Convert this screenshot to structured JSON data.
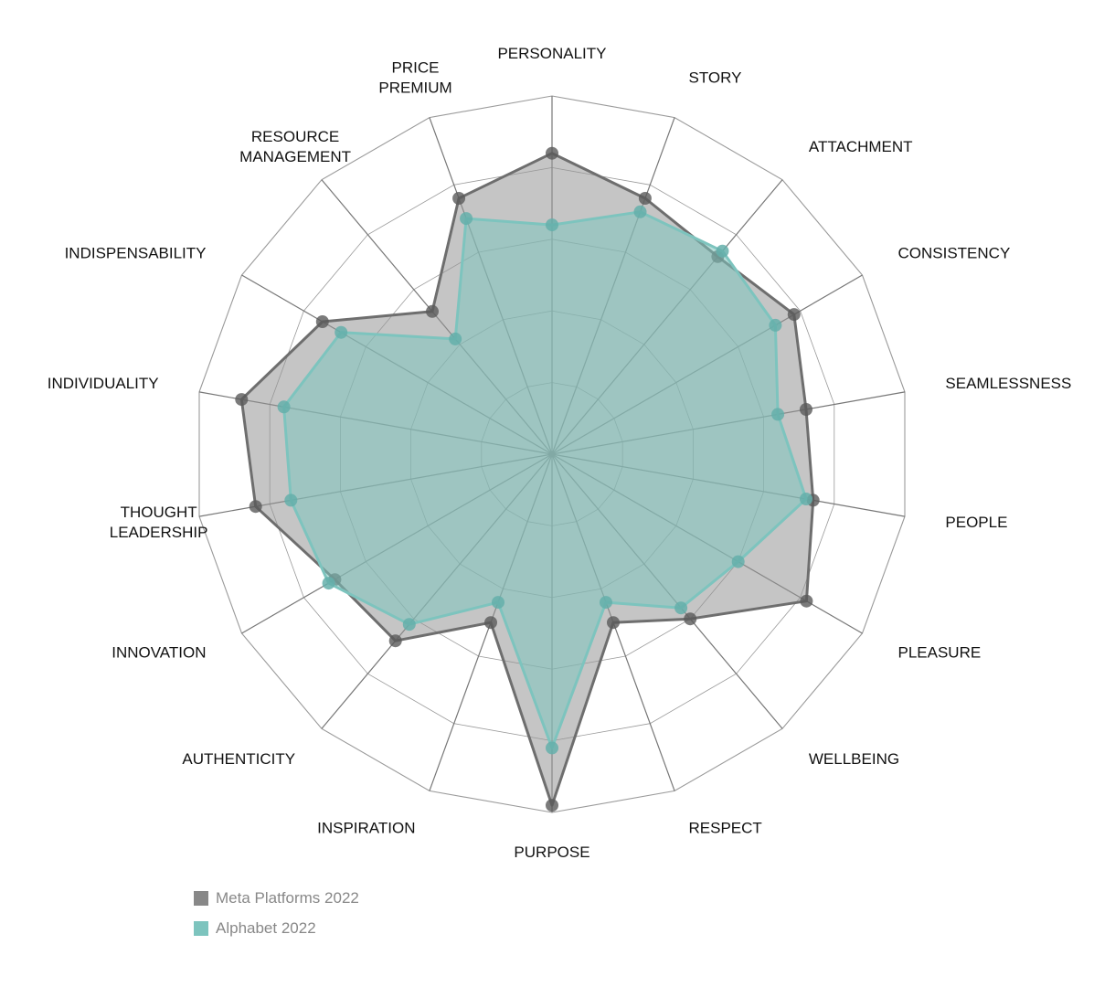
{
  "chart_data": {
    "type": "radar",
    "title": "",
    "axes": [
      "PERSONALITY",
      "STORY",
      "ATTACHMENT",
      "CONSISTENCY",
      "SEAMLESSNESS",
      "PEOPLE",
      "PLEASURE",
      "WELLBEING",
      "RESPECT",
      "PURPOSE",
      "INSPIRATION",
      "AUTHENTICITY",
      "INNOVATION",
      "THOUGHT LEADERSHIP",
      "INDIVIDUALITY",
      "INDISPENSABILITY",
      "RESOURCE MANAGEMENT",
      "PRICE PREMIUM"
    ],
    "rmax": 5,
    "rings": 5,
    "series": [
      {
        "name": "Meta Platforms 2022",
        "color": "#7a7a7a",
        "values": [
          4.2,
          3.8,
          3.6,
          3.9,
          3.6,
          3.7,
          4.1,
          3.0,
          2.5,
          4.9,
          2.5,
          3.4,
          3.5,
          4.2,
          4.4,
          3.7,
          2.6,
          3.8
        ]
      },
      {
        "name": "Alphabet 2022",
        "color": "#7dc4be",
        "values": [
          3.2,
          3.6,
          3.7,
          3.6,
          3.2,
          3.6,
          3.0,
          2.8,
          2.2,
          4.1,
          2.2,
          3.1,
          3.6,
          3.7,
          3.8,
          3.4,
          2.1,
          3.5
        ]
      }
    ],
    "legend_position": "bottom-left",
    "grid": true
  }
}
